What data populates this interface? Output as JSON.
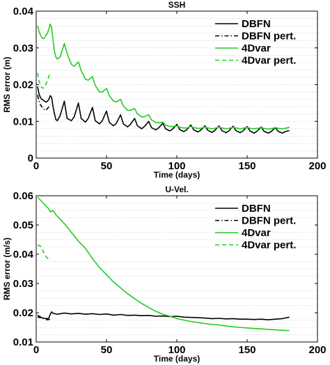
{
  "colors": {
    "dbfn": "#000000",
    "fourdvar": "#22cc22"
  },
  "chart_data": [
    {
      "type": "line",
      "title": "SSH",
      "xlabel": "Time (days)",
      "ylabel": "RMS error (m)",
      "xlim": [
        0,
        200
      ],
      "ylim": [
        0,
        0.04
      ],
      "xticks": [
        0,
        50,
        100,
        150,
        200
      ],
      "yticks": [
        0,
        0.01,
        0.02,
        0.03,
        0.04
      ],
      "ytick_labels": [
        "0",
        "0.01",
        "0.02",
        "0.03",
        "0.04"
      ],
      "ygrid": [
        0.002,
        0.004,
        0.006,
        0.008,
        0.01,
        0.012,
        0.014,
        0.016,
        0.018,
        0.02,
        0.022,
        0.024,
        0.026,
        0.028,
        0.03,
        0.032,
        0.034,
        0.036,
        0.038
      ],
      "legend_position": "top-right",
      "series": [
        {
          "name": "DBFN",
          "color": "#000000",
          "dash": "solid",
          "x": [
            1,
            2,
            3,
            4,
            5,
            6,
            7,
            8,
            9,
            10,
            11,
            12,
            13,
            14,
            15,
            17,
            20,
            22,
            25,
            27,
            30,
            32,
            35,
            37,
            40,
            42,
            45,
            47,
            50,
            52,
            55,
            57,
            60,
            62,
            65,
            67,
            70,
            72,
            75,
            77,
            80,
            82,
            85,
            87,
            90,
            92,
            95,
            97,
            100,
            102,
            105,
            107,
            110,
            112,
            115,
            117,
            120,
            122,
            125,
            127,
            130,
            132,
            135,
            137,
            140,
            142,
            145,
            147,
            150,
            152,
            155,
            157,
            160,
            162,
            165,
            167,
            170,
            172,
            175,
            177,
            180
          ],
          "y": [
            0.0195,
            0.0175,
            0.0165,
            0.016,
            0.0158,
            0.0155,
            0.0152,
            0.0155,
            0.016,
            0.017,
            0.0165,
            0.014,
            0.012,
            0.0105,
            0.0102,
            0.0115,
            0.0155,
            0.0108,
            0.0102,
            0.0112,
            0.015,
            0.0108,
            0.0098,
            0.0108,
            0.0138,
            0.0102,
            0.0093,
            0.0102,
            0.0128,
            0.0097,
            0.0088,
            0.0095,
            0.0118,
            0.0093,
            0.0085,
            0.0092,
            0.0108,
            0.0088,
            0.008,
            0.0086,
            0.01,
            0.0083,
            0.0077,
            0.0082,
            0.0095,
            0.008,
            0.0074,
            0.0079,
            0.0092,
            0.0078,
            0.0072,
            0.0077,
            0.009,
            0.0077,
            0.0071,
            0.0076,
            0.0088,
            0.0076,
            0.007,
            0.0075,
            0.0088,
            0.0075,
            0.0069,
            0.0074,
            0.0087,
            0.0075,
            0.0069,
            0.0074,
            0.0086,
            0.0074,
            0.0068,
            0.0073,
            0.0085,
            0.0073,
            0.0068,
            0.0072,
            0.0083,
            0.0073,
            0.0068,
            0.0072,
            0.0075
          ]
        },
        {
          "name": "DBFN pert.",
          "color": "#000000",
          "dash": "dashdot",
          "x": [
            1,
            2,
            3,
            4,
            5,
            6,
            7,
            8,
            9,
            10
          ],
          "y": [
            0.0172,
            0.0155,
            0.0145,
            0.014,
            0.0135,
            0.0132,
            0.013,
            0.0135,
            0.014,
            0.0145
          ]
        },
        {
          "name": "4Dvar",
          "color": "#22cc22",
          "dash": "solid",
          "x": [
            1,
            2,
            3,
            4,
            5,
            6,
            7,
            8,
            9,
            10,
            11,
            12,
            13,
            14,
            15,
            17,
            20,
            22,
            25,
            27,
            30,
            32,
            35,
            37,
            40,
            42,
            45,
            47,
            50,
            52,
            55,
            57,
            60,
            62,
            65,
            67,
            70,
            72,
            75,
            77,
            80,
            82,
            85,
            87,
            90,
            92,
            95,
            97,
            100,
            102,
            105,
            107,
            110,
            112,
            115,
            117,
            120,
            122,
            125,
            127,
            130,
            132,
            135,
            137,
            140,
            142,
            145,
            147,
            150,
            152,
            155,
            157,
            160,
            162,
            165,
            167,
            170,
            172,
            175,
            177,
            180
          ],
          "y": [
            0.036,
            0.0345,
            0.0335,
            0.0328,
            0.0325,
            0.0328,
            0.0335,
            0.034,
            0.0352,
            0.0365,
            0.0355,
            0.032,
            0.029,
            0.0275,
            0.027,
            0.0275,
            0.0312,
            0.0285,
            0.0255,
            0.025,
            0.0262,
            0.0238,
            0.0215,
            0.0212,
            0.0222,
            0.0198,
            0.018,
            0.018,
            0.019,
            0.017,
            0.0155,
            0.0153,
            0.016,
            0.0142,
            0.013,
            0.013,
            0.0135,
            0.012,
            0.0112,
            0.0113,
            0.0118,
            0.0104,
            0.0097,
            0.0096,
            0.0098,
            0.009,
            0.0086,
            0.0086,
            0.0088,
            0.0084,
            0.0082,
            0.0082,
            0.0086,
            0.0083,
            0.0081,
            0.0081,
            0.0085,
            0.0082,
            0.008,
            0.0081,
            0.0085,
            0.0082,
            0.008,
            0.0081,
            0.0084,
            0.0082,
            0.008,
            0.0081,
            0.0084,
            0.0081,
            0.008,
            0.0081,
            0.0083,
            0.0081,
            0.0079,
            0.008,
            0.0083,
            0.0081,
            0.008,
            0.0081,
            0.0084
          ]
        },
        {
          "name": "4Dvar pert.",
          "color": "#22cc22",
          "dash": "dashed",
          "x": [
            1,
            2,
            3,
            4,
            5,
            6,
            7,
            8,
            9,
            10
          ],
          "y": [
            0.0232,
            0.021,
            0.0198,
            0.0192,
            0.019,
            0.0195,
            0.0202,
            0.021,
            0.0222,
            0.0232
          ]
        }
      ]
    },
    {
      "type": "line",
      "title": "U-Vel.",
      "xlabel": "Time (days)",
      "ylabel": "RMS error (m/s)",
      "xlim": [
        0,
        200
      ],
      "ylim": [
        0.01,
        0.06
      ],
      "xticks": [
        0,
        50,
        100,
        150,
        200
      ],
      "yticks": [
        0.01,
        0.02,
        0.03,
        0.04,
        0.05,
        0.06
      ],
      "ytick_labels": [
        "0.01",
        "0.02",
        "0.03",
        "0.04",
        "0.05",
        "0.06"
      ],
      "ygrid": [
        0.0125,
        0.015,
        0.0175,
        0.0225,
        0.025,
        0.0275,
        0.0325,
        0.035,
        0.0375,
        0.0425,
        0.045,
        0.0475,
        0.0525,
        0.055,
        0.0575
      ],
      "legend_position": "top-right",
      "series": [
        {
          "name": "DBFN",
          "color": "#000000",
          "dash": "solid",
          "x": [
            1,
            2,
            4,
            6,
            8,
            9,
            10,
            11,
            12,
            15,
            20,
            25,
            30,
            35,
            40,
            45,
            50,
            55,
            60,
            65,
            70,
            75,
            80,
            85,
            90,
            95,
            100,
            105,
            110,
            115,
            120,
            125,
            130,
            135,
            140,
            145,
            150,
            155,
            160,
            165,
            170,
            175,
            180
          ],
          "y": [
            0.0186,
            0.0184,
            0.0183,
            0.0181,
            0.018,
            0.0182,
            0.0195,
            0.0203,
            0.0198,
            0.0195,
            0.0199,
            0.0196,
            0.0198,
            0.0195,
            0.0197,
            0.0194,
            0.0196,
            0.0192,
            0.0194,
            0.0191,
            0.0192,
            0.019,
            0.0191,
            0.0188,
            0.0189,
            0.0187,
            0.0188,
            0.0185,
            0.0184,
            0.0183,
            0.0182,
            0.018,
            0.0181,
            0.0179,
            0.018,
            0.0178,
            0.0178,
            0.0177,
            0.0178,
            0.0176,
            0.0178,
            0.018,
            0.0185
          ]
        },
        {
          "name": "DBFN pert.",
          "color": "#000000",
          "dash": "dashdot",
          "x": [
            1,
            2,
            4,
            6,
            8,
            10
          ],
          "y": [
            0.0192,
            0.0188,
            0.0184,
            0.0178,
            0.0176,
            0.0178
          ]
        },
        {
          "name": "4Dvar",
          "color": "#22cc22",
          "dash": "solid",
          "x": [
            1,
            3,
            5,
            7,
            9,
            10,
            12,
            14,
            16,
            18,
            20,
            25,
            30,
            35,
            40,
            45,
            50,
            55,
            60,
            65,
            70,
            75,
            80,
            85,
            90,
            95,
            100,
            105,
            110,
            115,
            120,
            125,
            130,
            135,
            140,
            145,
            150,
            155,
            160,
            165,
            170,
            175,
            180
          ],
          "y": [
            0.0595,
            0.0585,
            0.0575,
            0.0565,
            0.0555,
            0.0545,
            0.055,
            0.0535,
            0.0525,
            0.0515,
            0.0505,
            0.0475,
            0.0445,
            0.042,
            0.0385,
            0.0355,
            0.033,
            0.0305,
            0.0285,
            0.0265,
            0.0248,
            0.0232,
            0.0218,
            0.0205,
            0.0195,
            0.0188,
            0.018,
            0.0175,
            0.017,
            0.0167,
            0.0163,
            0.016,
            0.0158,
            0.0155,
            0.0152,
            0.015,
            0.0148,
            0.0146,
            0.0145,
            0.0143,
            0.0142,
            0.014,
            0.0139
          ]
        },
        {
          "name": "4Dvar pert.",
          "color": "#22cc22",
          "dash": "dashed",
          "x": [
            1,
            3,
            5,
            7,
            9,
            10
          ],
          "y": [
            0.0432,
            0.0428,
            0.041,
            0.0392,
            0.0382,
            0.0378
          ]
        }
      ]
    }
  ]
}
